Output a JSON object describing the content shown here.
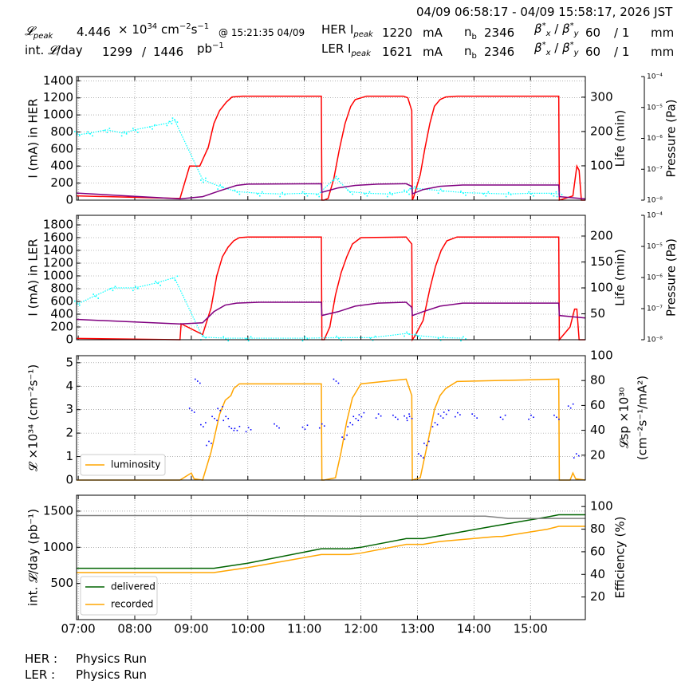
{
  "header": {
    "time_range": "04/09 06:58:17 - 04/09 15:58:17, 2026 JST",
    "lpeak_label": "peak",
    "lpeak_value": "4.446",
    "lpeak_times": "× 10",
    "lpeak_exp": "34",
    "lpeak_unit": "cm",
    "lpeak_unit_exp1": "−2",
    "lpeak_unit_s": "s",
    "lpeak_unit_exp2": "−1",
    "lpeak_time": "@ 15:21:35 04/09",
    "intl_label": "int.",
    "intl_suffix": "/day",
    "intl_value": "1299",
    "intl_sep": "/",
    "intl_value2": "1446",
    "intl_unit": "pb",
    "intl_unit_exp": "−1",
    "her_label": "HER I",
    "her_sub": "peak",
    "her_value": "1220",
    "her_unit": "mA",
    "ler_label": "LER I",
    "ler_sub": "peak",
    "ler_value": "1621",
    "ler_unit": "mA",
    "nb_label": "n",
    "nb_sub": "b",
    "her_nb": "2346",
    "ler_nb": "2346",
    "beta_label": "β",
    "beta_x": "x",
    "beta_y": "y",
    "beta_star": "*",
    "beta_sep": " / ",
    "her_beta": "60",
    "her_beta2": "/ 1",
    "ler_beta": "60",
    "ler_beta2": "/ 1",
    "beta_unit": "mm"
  },
  "footer": {
    "her_label": "HER :",
    "her_mode": "Physics Run",
    "ler_label": "LER :",
    "ler_mode": "Physics Run"
  },
  "colors": {
    "current": "#ff0000",
    "life": "#00ffff",
    "pressure": "#800080",
    "luminosity": "#ffa500",
    "specific_luminosity": "#0000ff",
    "delivered": "#006400",
    "recorded": "#ffa500",
    "efficiency": "#808080",
    "grid": "#808080"
  },
  "chart_data": [
    {
      "id": "her",
      "type": "line",
      "xlabel": "",
      "x_ticks": [
        "07:00",
        "08:00",
        "09:00",
        "10:00",
        "11:00",
        "12:00",
        "13:00",
        "14:00",
        "15:00"
      ],
      "xlim": [
        6.97,
        15.97
      ],
      "ylabel": "I (mA) in HER",
      "ylim": [
        0,
        1450
      ],
      "yticks": [
        "0",
        "200",
        "400",
        "600",
        "800",
        "1000",
        "1200",
        "1400"
      ],
      "y2label": "Life (min)",
      "y2lim": [
        0,
        360
      ],
      "y2ticks": [
        "100",
        "200",
        "300"
      ],
      "y3label": "Pressure (Pa)",
      "y3ticks": [
        "10⁻⁴",
        "10⁻⁵",
        "10⁻⁶",
        "10⁻⁷",
        "10⁻⁸"
      ],
      "series": [
        {
          "role": "current",
          "x": [
            6.97,
            8.8,
            8.97,
            9.15,
            9.3,
            9.4,
            9.5,
            9.62,
            9.72,
            9.9,
            11.3,
            11.31,
            11.35,
            11.42,
            11.52,
            11.62,
            11.72,
            11.82,
            11.9,
            12.1,
            12.75,
            12.83,
            12.9,
            12.91,
            12.93,
            13.05,
            13.13,
            13.22,
            13.3,
            13.4,
            13.5,
            13.7,
            15.5,
            15.51,
            15.75,
            15.82,
            15.86,
            15.9,
            15.97
          ],
          "y": [
            50,
            20,
            400,
            400,
            620,
            900,
            1050,
            1150,
            1210,
            1220,
            1220,
            0,
            0,
            20,
            250,
            600,
            900,
            1100,
            1180,
            1220,
            1220,
            1200,
            1050,
            0,
            30,
            300,
            600,
            900,
            1100,
            1180,
            1210,
            1220,
            1220,
            0,
            50,
            400,
            350,
            0,
            0
          ]
        },
        {
          "role": "life",
          "x": [
            6.97,
            7.2,
            7.5,
            7.8,
            8.0,
            8.3,
            8.6,
            8.7,
            9.2,
            9.5,
            9.8,
            10.2,
            10.6,
            11.0,
            11.25,
            11.55,
            11.8,
            12.1,
            12.5,
            12.8,
            12.9,
            13.4,
            13.8,
            14.2,
            14.6,
            15.0,
            15.4,
            15.5
          ],
          "y": [
            190,
            195,
            205,
            195,
            205,
            215,
            225,
            235,
            60,
            40,
            25,
            20,
            18,
            20,
            18,
            65,
            25,
            20,
            18,
            25,
            35,
            28,
            22,
            20,
            18,
            20,
            20,
            18
          ]
        },
        {
          "role": "pressure",
          "x": [
            6.97,
            8.8,
            9.2,
            9.5,
            9.8,
            10.0,
            11.3,
            11.31,
            11.6,
            11.9,
            12.3,
            12.8,
            12.9,
            12.91,
            13.1,
            13.4,
            13.8,
            15.5,
            15.51,
            15.97
          ],
          "y": [
            1.7e-08,
            1.1e-08,
            1.3e-08,
            2e-08,
            3e-08,
            3.3e-08,
            3.4e-08,
            1.8e-08,
            2.5e-08,
            3e-08,
            3.3e-08,
            3.4e-08,
            2.8e-08,
            1.6e-08,
            2.2e-08,
            2.8e-08,
            3.1e-08,
            3.1e-08,
            1.3e-08,
            1.1e-08
          ]
        }
      ]
    },
    {
      "id": "ler",
      "type": "line",
      "xlabel": "",
      "xlim": [
        6.97,
        15.97
      ],
      "ylabel": "I (mA) in LER",
      "ylim": [
        0,
        1950
      ],
      "yticks": [
        "0",
        "200",
        "400",
        "600",
        "800",
        "1000",
        "1200",
        "1400",
        "1600",
        "1800"
      ],
      "y2label": "Life (min)",
      "y2lim": [
        0,
        240
      ],
      "y2ticks": [
        "50",
        "100",
        "150",
        "200"
      ],
      "y3label": "Pressure (Pa)",
      "y3ticks": [
        "10⁻⁴",
        "10⁻⁵",
        "10⁻⁶",
        "10⁻⁷",
        "10⁻⁸"
      ],
      "series": [
        {
          "role": "current",
          "x": [
            6.97,
            8.8,
            8.82,
            9.2,
            9.35,
            9.45,
            9.55,
            9.65,
            9.75,
            9.85,
            10.0,
            11.3,
            11.31,
            11.35,
            11.45,
            11.55,
            11.65,
            11.75,
            11.85,
            12.0,
            12.8,
            12.9,
            12.91,
            12.95,
            13.1,
            13.22,
            13.32,
            13.42,
            13.52,
            13.7,
            15.5,
            15.51,
            15.7,
            15.78,
            15.82,
            15.86,
            15.97
          ],
          "y": [
            20,
            0,
            250,
            80,
            500,
            1000,
            1300,
            1450,
            1550,
            1600,
            1610,
            1610,
            0,
            0,
            200,
            700,
            1050,
            1300,
            1500,
            1600,
            1610,
            1500,
            0,
            50,
            300,
            800,
            1150,
            1400,
            1550,
            1610,
            1610,
            0,
            200,
            480,
            480,
            0,
            0
          ]
        },
        {
          "role": "life",
          "x": [
            6.97,
            7.3,
            7.6,
            8.0,
            8.4,
            8.7,
            9.2,
            9.6,
            10.0,
            11.0,
            11.6,
            12.2,
            12.8,
            13.0,
            13.4,
            13.8
          ],
          "y": [
            68,
            85,
            100,
            100,
            110,
            120,
            5,
            3,
            3,
            3,
            4,
            4,
            12,
            8,
            4,
            3
          ]
        },
        {
          "role": "pressure",
          "x": [
            6.97,
            8.8,
            9.2,
            9.4,
            9.6,
            9.8,
            10.2,
            11.3,
            11.31,
            11.6,
            11.9,
            12.3,
            12.8,
            12.9,
            12.91,
            13.1,
            13.4,
            13.8,
            15.5,
            15.51,
            15.97
          ],
          "y": [
            4.5e-08,
            3.2e-08,
            3.5e-08,
            8e-08,
            1.3e-07,
            1.5e-07,
            1.6e-07,
            1.6e-07,
            6e-08,
            8e-08,
            1.2e-07,
            1.5e-07,
            1.6e-07,
            1.1e-07,
            6e-08,
            8e-08,
            1.2e-07,
            1.5e-07,
            1.5e-07,
            6e-08,
            5e-08
          ]
        }
      ]
    },
    {
      "id": "lumi",
      "type": "line",
      "xlabel": "",
      "xlim": [
        6.97,
        15.97
      ],
      "ylabel": "𝓛 ×10³⁴ (cm⁻²s⁻¹)",
      "ylim": [
        0,
        5.3
      ],
      "yticks": [
        "0",
        "1",
        "2",
        "3",
        "4",
        "5"
      ],
      "y2label": "𝓛sp ×10³⁰",
      "y2label2": "(cm⁻²s⁻¹/mA²)",
      "y2lim": [
        0,
        100
      ],
      "y2ticks": [
        "20",
        "40",
        "60",
        "80",
        "100"
      ],
      "legend": [
        "luminosity"
      ],
      "legend_position": "lower-left",
      "series": [
        {
          "name": "luminosity",
          "role": "luminosity",
          "x": [
            6.97,
            8.8,
            9.0,
            9.05,
            9.2,
            9.35,
            9.5,
            9.6,
            9.7,
            9.75,
            9.85,
            10.0,
            11.3,
            11.31,
            11.35,
            11.55,
            11.65,
            11.75,
            11.85,
            12.0,
            12.4,
            12.8,
            12.9,
            12.91,
            13.05,
            13.2,
            13.3,
            13.4,
            13.5,
            13.7,
            15.5,
            15.51,
            15.7,
            15.75,
            15.8,
            15.97
          ],
          "y": [
            0,
            0,
            0.3,
            0.05,
            0,
            1.2,
            2.8,
            3.4,
            3.6,
            3.9,
            4.1,
            4.1,
            4.1,
            0,
            0,
            0.1,
            1.2,
            2.5,
            3.5,
            4.1,
            4.2,
            4.3,
            3.6,
            0,
            0.1,
            1.8,
            3.0,
            3.6,
            3.9,
            4.2,
            4.3,
            0,
            0,
            0.3,
            0.05,
            0
          ]
        },
        {
          "name": "specific luminosity",
          "role": "specific_luminosity",
          "x": [
            9.0,
            9.1,
            9.2,
            9.3,
            9.4,
            9.5,
            9.6,
            9.7,
            9.8,
            10.0,
            10.5,
            11.0,
            11.3,
            11.55,
            11.7,
            11.8,
            11.9,
            12.0,
            12.3,
            12.6,
            12.8,
            12.85,
            13.05,
            13.15,
            13.3,
            13.4,
            13.5,
            13.7,
            14.0,
            14.5,
            15.0,
            15.45,
            15.7,
            15.8
          ],
          "y": [
            55,
            80,
            45,
            30,
            50,
            58,
            50,
            42,
            42,
            41,
            44,
            43,
            44,
            80,
            35,
            45,
            50,
            53,
            52,
            51,
            52,
            50,
            20,
            30,
            45,
            52,
            55,
            53,
            52,
            51,
            51,
            51,
            60,
            20
          ]
        }
      ]
    },
    {
      "id": "intlumi",
      "type": "line",
      "xlabel": "",
      "xlim": [
        6.97,
        15.97
      ],
      "ylabel": "int. 𝓛/day (pb⁻¹)",
      "ylim": [
        0,
        1720
      ],
      "yticks": [
        "500",
        "1000",
        "1500"
      ],
      "y2label": "Efficiency (%)",
      "y2lim": [
        0,
        110
      ],
      "y2ticks": [
        "20",
        "40",
        "60",
        "80",
        "100"
      ],
      "legend": [
        "delivered",
        "recorded"
      ],
      "legend_position": "lower-left",
      "series": [
        {
          "name": "delivered",
          "role": "delivered",
          "x": [
            6.97,
            9.4,
            10.0,
            11.3,
            11.8,
            12.0,
            12.8,
            13.1,
            13.4,
            14.4,
            15.3,
            15.5,
            15.97
          ],
          "y": [
            710,
            710,
            780,
            980,
            980,
            1000,
            1120,
            1120,
            1160,
            1300,
            1420,
            1450,
            1450
          ]
        },
        {
          "name": "recorded",
          "role": "recorded",
          "x": [
            6.97,
            9.4,
            10.0,
            11.3,
            11.8,
            12.0,
            12.8,
            13.1,
            13.4,
            14.4,
            14.5,
            15.3,
            15.5,
            15.97
          ],
          "y": [
            650,
            650,
            720,
            900,
            900,
            920,
            1040,
            1040,
            1080,
            1150,
            1150,
            1250,
            1290,
            1290
          ]
        },
        {
          "name": "efficiency",
          "role": "efficiency",
          "x": [
            6.97,
            10.0,
            12.0,
            13.0,
            14.2,
            14.4,
            14.6,
            15.97
          ],
          "y": [
            92,
            92,
            91.5,
            91.5,
            91.5,
            90.5,
            89.5,
            89.5
          ]
        }
      ]
    }
  ]
}
